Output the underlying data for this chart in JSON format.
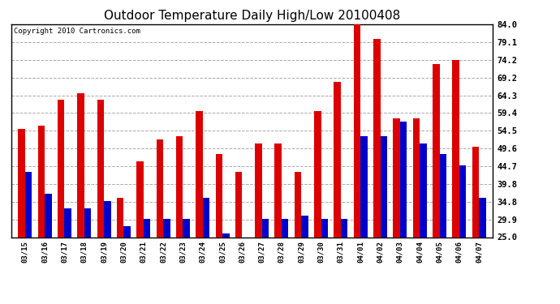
{
  "title": "Outdoor Temperature Daily High/Low 20100408",
  "copyright": "Copyright 2010 Cartronics.com",
  "dates": [
    "03/15",
    "03/16",
    "03/17",
    "03/18",
    "03/19",
    "03/20",
    "03/21",
    "03/22",
    "03/23",
    "03/24",
    "03/25",
    "03/26",
    "03/27",
    "03/28",
    "03/29",
    "03/30",
    "03/31",
    "04/01",
    "04/02",
    "04/03",
    "04/04",
    "04/05",
    "04/06",
    "04/07"
  ],
  "highs": [
    55.0,
    56.0,
    63.0,
    65.0,
    63.0,
    36.0,
    46.0,
    52.0,
    53.0,
    60.0,
    48.0,
    43.0,
    51.0,
    51.0,
    43.0,
    60.0,
    68.0,
    84.0,
    80.0,
    58.0,
    58.0,
    73.0,
    74.0,
    50.0
  ],
  "lows": [
    43.0,
    37.0,
    33.0,
    33.0,
    35.0,
    28.0,
    30.0,
    30.0,
    30.0,
    36.0,
    26.0,
    25.0,
    30.0,
    30.0,
    31.0,
    30.0,
    30.0,
    53.0,
    53.0,
    57.0,
    51.0,
    48.0,
    45.0,
    36.0
  ],
  "high_color": "#dd0000",
  "low_color": "#0000cc",
  "bg_color": "#ffffff",
  "grid_color": "#aaaaaa",
  "ymin": 25.0,
  "ymax": 84.0,
  "yticks": [
    25.0,
    29.9,
    34.8,
    39.8,
    44.7,
    49.6,
    54.5,
    59.4,
    64.3,
    69.2,
    74.2,
    79.1,
    84.0
  ],
  "title_fontsize": 11,
  "copyright_fontsize": 6.5,
  "bar_width": 0.35,
  "figsize": [
    6.9,
    3.75
  ],
  "dpi": 100
}
